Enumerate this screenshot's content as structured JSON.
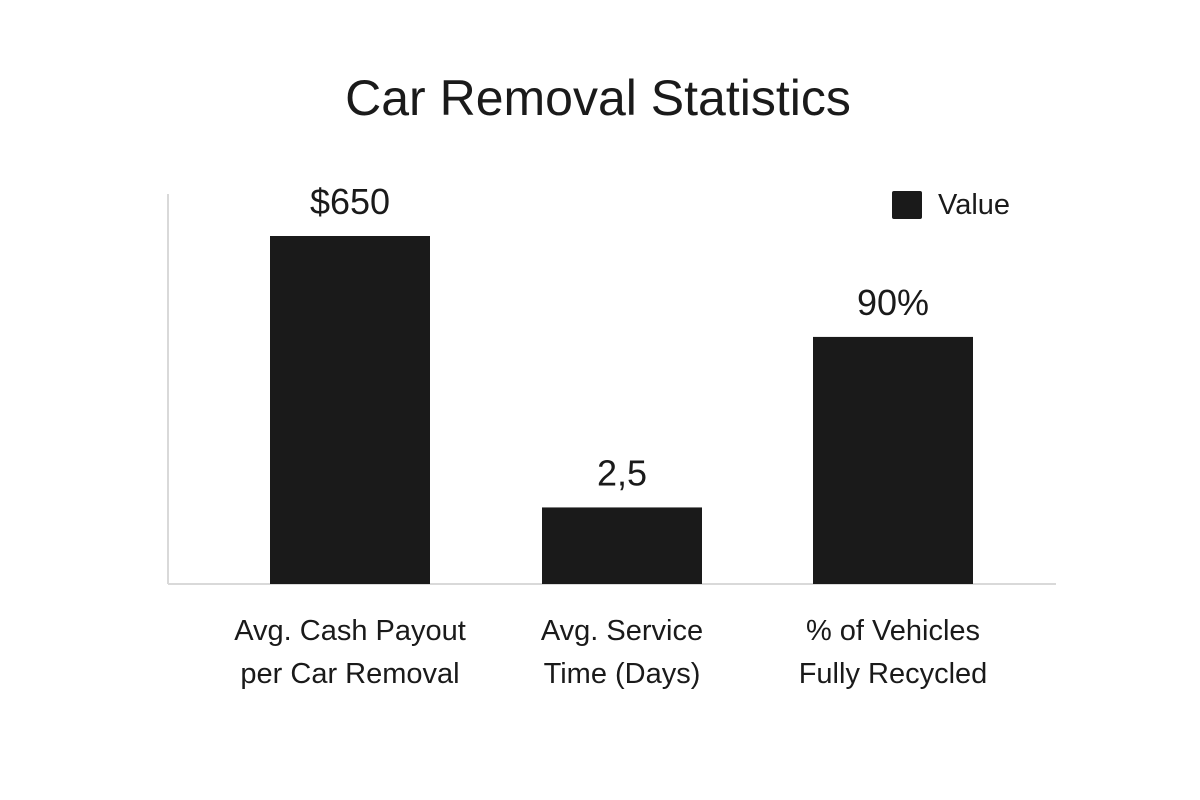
{
  "chart_data": {
    "type": "bar",
    "title": "Car Removal Statistics",
    "xlabel": "",
    "ylabel": "",
    "categories": [
      [
        "Avg. Cash Payout",
        "per Car Removal"
      ],
      [
        "Avg. Service",
        "Time (Days)"
      ],
      [
        "% of Vehicles",
        "Fully Recycled"
      ]
    ],
    "series": [
      {
        "name": "Value",
        "color": "#1a1a1a",
        "values": [
          650,
          2.5,
          90
        ],
        "display_values": [
          "$650",
          "2,5",
          "90%"
        ],
        "visual_heights": [
          1.0,
          0.22,
          0.71
        ]
      }
    ],
    "legend": {
      "position": "top-right"
    },
    "grid": false
  },
  "colors": {
    "bar": "#1a1a1a",
    "axis": "#d9d9d9",
    "text": "#1a1a1a",
    "background": "#ffffff"
  }
}
